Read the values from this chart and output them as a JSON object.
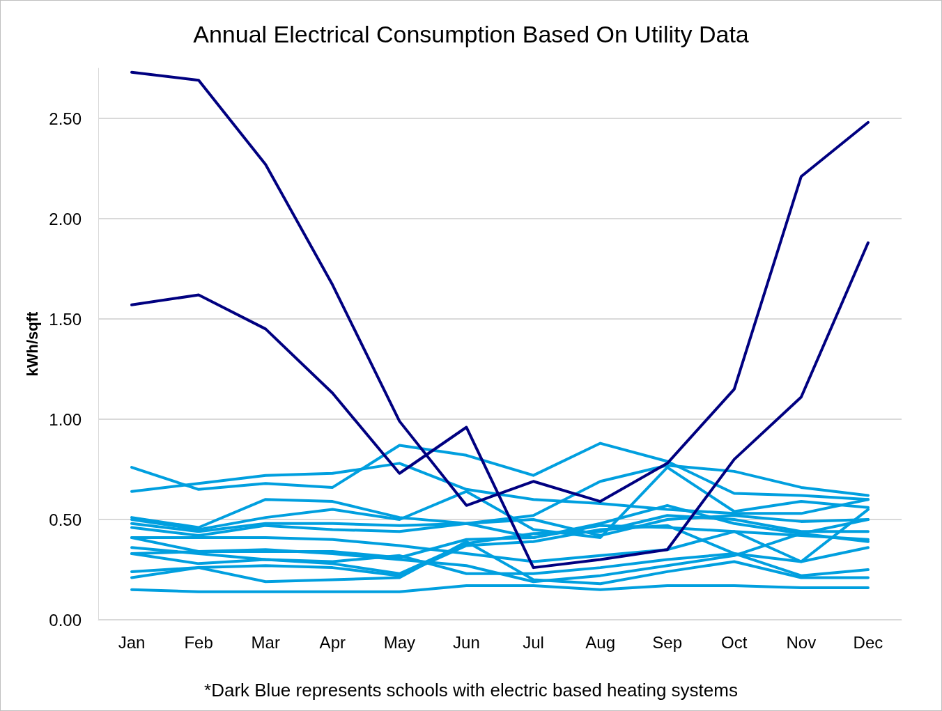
{
  "chart_data": {
    "type": "line",
    "title": "Annual Electrical Consumption Based On Utility Data",
    "ylabel": "kWh/sqft",
    "categories": [
      "Jan",
      "Feb",
      "Mar",
      "Apr",
      "May",
      "Jun",
      "Jul",
      "Aug",
      "Sep",
      "Oct",
      "Nov",
      "Dec"
    ],
    "series": [
      {
        "color": "#009fdf",
        "values": [
          0.76,
          0.65,
          0.68,
          0.66,
          0.87,
          0.82,
          0.72,
          0.88,
          0.79,
          0.63,
          0.62,
          0.6
        ]
      },
      {
        "color": "#009fdf",
        "values": [
          0.64,
          0.68,
          0.72,
          0.73,
          0.78,
          0.65,
          0.6,
          0.58,
          0.55,
          0.53,
          0.53,
          0.6
        ]
      },
      {
        "color": "#009fdf",
        "values": [
          0.51,
          0.46,
          0.6,
          0.59,
          0.51,
          0.48,
          0.52,
          0.69,
          0.77,
          0.74,
          0.66,
          0.62
        ]
      },
      {
        "color": "#009fdf",
        "values": [
          0.5,
          0.45,
          0.51,
          0.55,
          0.5,
          0.64,
          0.45,
          0.41,
          0.76,
          0.54,
          0.59,
          0.56
        ]
      },
      {
        "color": "#009fdf",
        "values": [
          0.48,
          0.44,
          0.48,
          0.48,
          0.47,
          0.48,
          0.5,
          0.42,
          0.5,
          0.52,
          0.49,
          0.5
        ]
      },
      {
        "color": "#009fdf",
        "values": [
          0.46,
          0.42,
          0.47,
          0.45,
          0.44,
          0.48,
          0.41,
          0.48,
          0.57,
          0.48,
          0.43,
          0.39
        ]
      },
      {
        "color": "#009fdf",
        "values": [
          0.41,
          0.41,
          0.41,
          0.4,
          0.37,
          0.33,
          0.29,
          0.32,
          0.35,
          0.44,
          0.29,
          0.55
        ]
      },
      {
        "color": "#009fdf",
        "values": [
          0.41,
          0.34,
          0.34,
          0.34,
          0.31,
          0.4,
          0.41,
          0.47,
          0.46,
          0.44,
          0.42,
          0.4
        ]
      },
      {
        "color": "#009fdf",
        "values": [
          0.36,
          0.33,
          0.3,
          0.28,
          0.23,
          0.38,
          0.43,
          0.44,
          0.52,
          0.5,
          0.44,
          0.44
        ]
      },
      {
        "color": "#009fdf",
        "values": [
          0.33,
          0.34,
          0.35,
          0.33,
          0.3,
          0.27,
          0.19,
          0.22,
          0.27,
          0.32,
          0.43,
          0.5
        ]
      },
      {
        "color": "#009fdf",
        "values": [
          0.24,
          0.26,
          0.27,
          0.26,
          0.22,
          0.37,
          0.39,
          0.45,
          0.47,
          0.33,
          0.29,
          0.36
        ]
      },
      {
        "color": "#009fdf",
        "values": [
          0.21,
          0.26,
          0.19,
          0.2,
          0.21,
          0.39,
          0.2,
          0.18,
          0.24,
          0.29,
          0.21,
          0.21
        ]
      },
      {
        "color": "#009fdf",
        "values": [
          0.33,
          0.28,
          0.3,
          0.29,
          0.32,
          0.23,
          0.23,
          0.26,
          0.3,
          0.33,
          0.22,
          0.25
        ]
      },
      {
        "color": "#009fdf",
        "values": [
          0.15,
          0.14,
          0.14,
          0.14,
          0.14,
          0.17,
          0.17,
          0.15,
          0.17,
          0.17,
          0.16,
          0.16
        ]
      },
      {
        "color": "#000080",
        "values": [
          2.73,
          2.69,
          2.27,
          1.67,
          0.99,
          0.57,
          0.69,
          0.59,
          0.78,
          1.15,
          2.21,
          2.48
        ]
      },
      {
        "color": "#000080",
        "values": [
          1.57,
          1.62,
          1.45,
          1.13,
          0.73,
          0.96,
          0.26,
          0.3,
          0.35,
          0.8,
          1.11,
          1.88
        ]
      }
    ],
    "ylim": [
      0,
      2.75
    ],
    "yticks": [
      {
        "value": 0,
        "label": "0.00"
      },
      {
        "value": 0.5,
        "label": "0.50"
      },
      {
        "value": 1,
        "label": "1.00"
      },
      {
        "value": 1.5,
        "label": "1.50"
      },
      {
        "value": 2,
        "label": "2.00"
      },
      {
        "value": 2.5,
        "label": "2.50"
      }
    ],
    "grid": "y",
    "marker": "none",
    "line_style": "solid",
    "annotations": [
      "*Dark Blue represents schools with electric based heating systems"
    ]
  }
}
